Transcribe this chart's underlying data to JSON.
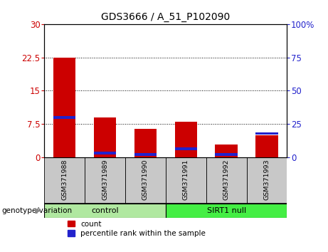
{
  "title": "GDS3666 / A_51_P102090",
  "samples": [
    "GSM371988",
    "GSM371989",
    "GSM371990",
    "GSM371991",
    "GSM371992",
    "GSM371993"
  ],
  "count_values": [
    22.5,
    9.0,
    6.5,
    8.0,
    3.0,
    5.0
  ],
  "percentile_values": [
    30.0,
    3.5,
    2.5,
    6.5,
    2.5,
    18.0
  ],
  "groups": [
    {
      "label": "control",
      "indices": [
        0,
        1,
        2
      ],
      "color": "#b0e8a0"
    },
    {
      "label": "SIRT1 null",
      "indices": [
        3,
        4,
        5
      ],
      "color": "#44ee44"
    }
  ],
  "ylim_left": [
    0,
    30
  ],
  "ylim_right": [
    0,
    100
  ],
  "yticks_left": [
    0,
    7.5,
    15,
    22.5,
    30
  ],
  "yticks_right": [
    0,
    25,
    50,
    75,
    100
  ],
  "bar_color_red": "#CC0000",
  "bar_color_blue": "#2222CC",
  "bg_color": "#FFFFFF",
  "tick_area_color": "#C8C8C8",
  "legend_count": "count",
  "legend_percentile": "percentile rank within the sample",
  "genotype_label": "genotype/variation",
  "bar_width": 0.55,
  "blue_bar_height": 0.6
}
